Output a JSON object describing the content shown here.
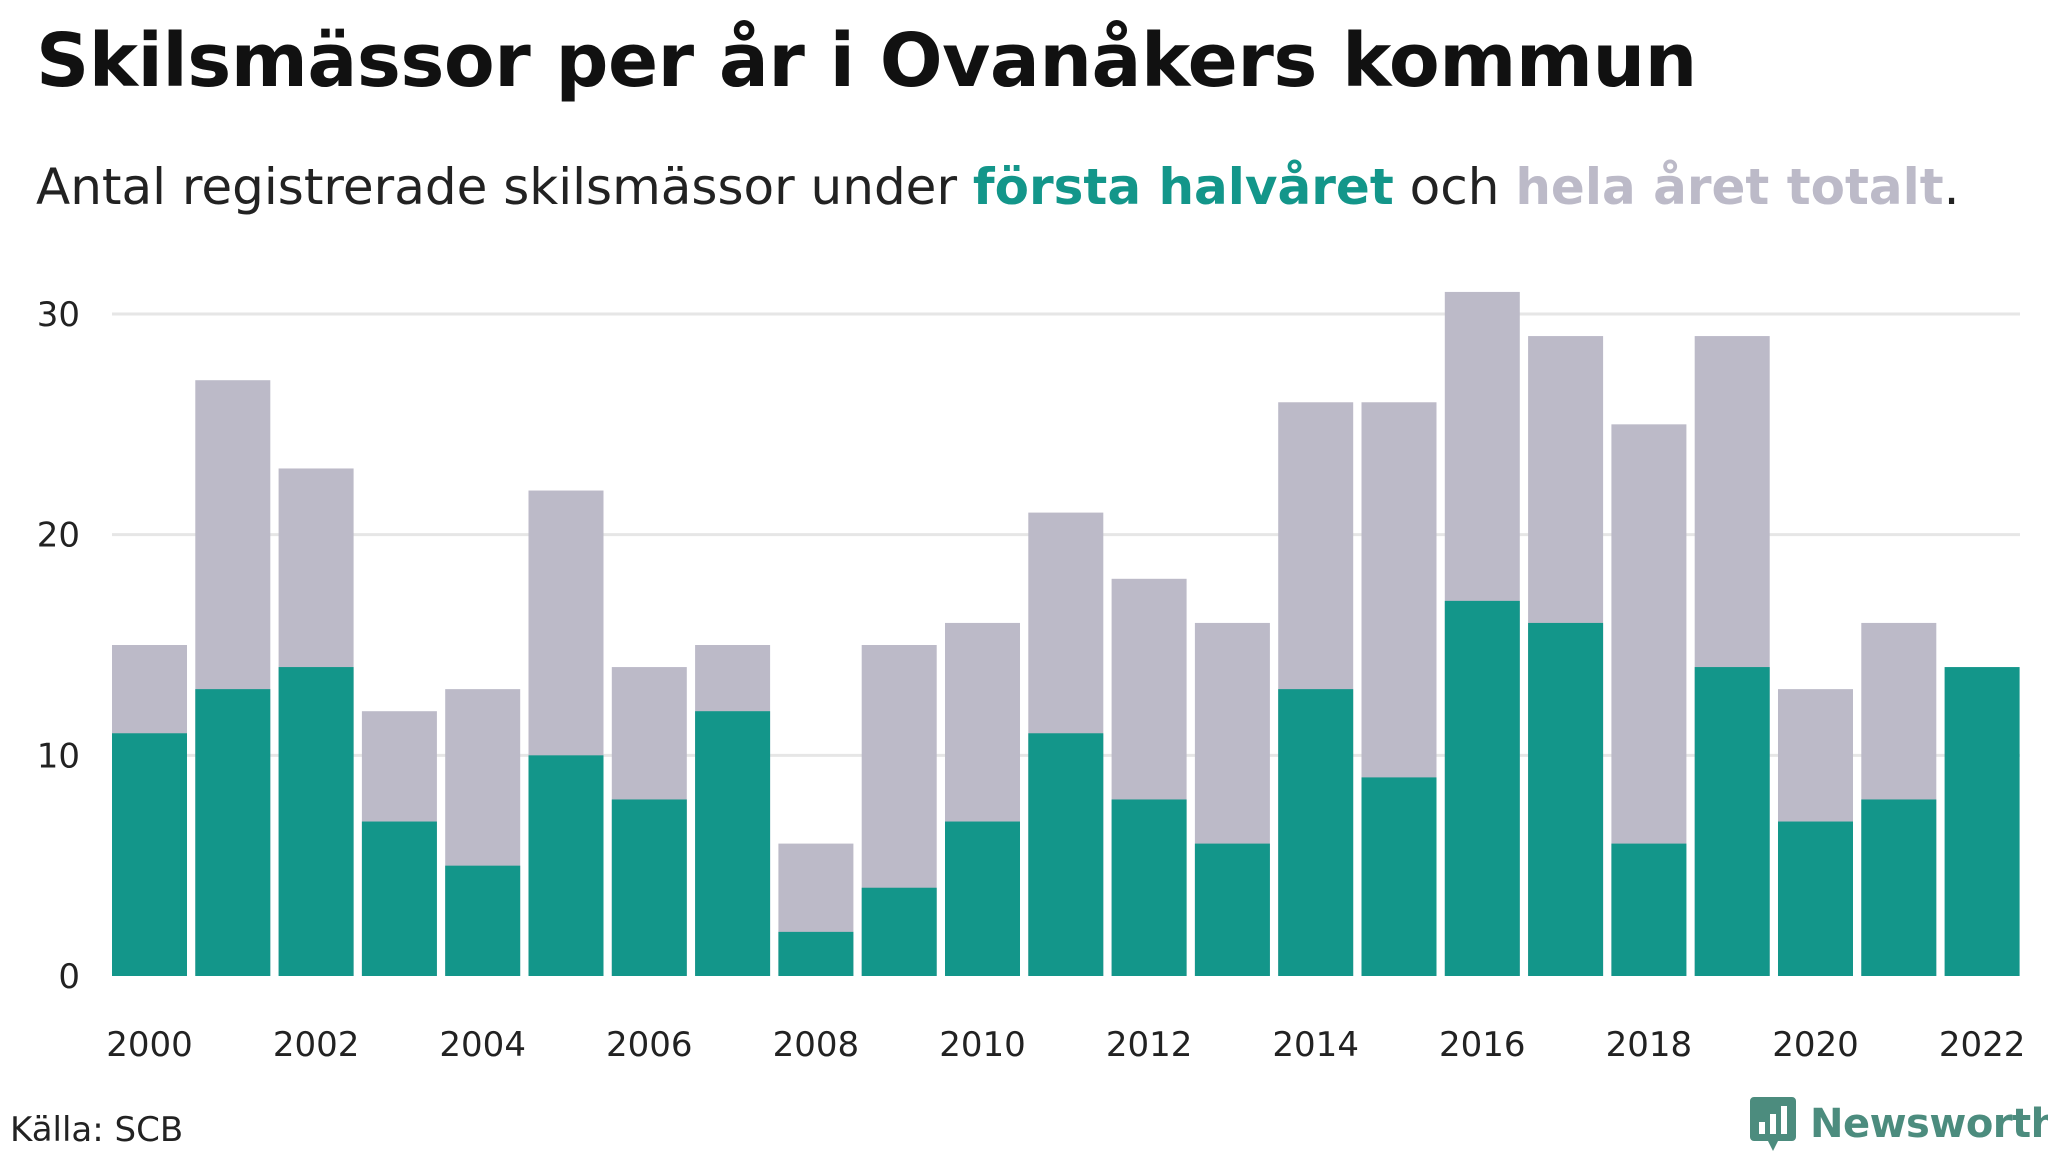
{
  "header": {
    "title": "Skilsmässor per år i Ovanåkers kommun",
    "subtitle_prefix": "Antal registrerade skilsmässor under ",
    "subtitle_first": "första halvåret",
    "subtitle_mid": " och ",
    "subtitle_total": "hela året totalt",
    "subtitle_suffix": "."
  },
  "footer": {
    "source": "Källa: SCB",
    "brand": "Newsworthy",
    "brand_icon": "bar-chart-speech-bubble-icon"
  },
  "colors": {
    "first_half": "#13968a",
    "full_year": "#bcbac8",
    "grid": "#e6e6e6",
    "text": "#111111",
    "brand": "#4c8c7e"
  },
  "chart_data": {
    "type": "bar",
    "stacked": false,
    "overlay": true,
    "title": "Skilsmässor per år i Ovanåkers kommun",
    "subtitle": "Antal registrerade skilsmässor under första halvåret och hela året totalt.",
    "xlabel": "",
    "ylabel": "",
    "ylim": [
      0,
      31
    ],
    "yticks": [
      0,
      10,
      20,
      30
    ],
    "grid": true,
    "legend": "none",
    "categories": [
      2000,
      2001,
      2002,
      2003,
      2004,
      2005,
      2006,
      2007,
      2008,
      2009,
      2010,
      2011,
      2012,
      2013,
      2014,
      2015,
      2016,
      2017,
      2018,
      2019,
      2020,
      2021,
      2022
    ],
    "xtick_labels": [
      "2000",
      "2002",
      "2004",
      "2006",
      "2008",
      "2010",
      "2012",
      "2014",
      "2016",
      "2018",
      "2020",
      "2022"
    ],
    "series": [
      {
        "name": "hela året totalt",
        "color": "#bcbac8",
        "values": [
          15,
          27,
          23,
          12,
          13,
          22,
          14,
          15,
          6,
          15,
          16,
          21,
          18,
          16,
          26,
          26,
          31,
          29,
          25,
          29,
          13,
          16,
          null
        ]
      },
      {
        "name": "första halvåret",
        "color": "#13968a",
        "values": [
          11,
          13,
          14,
          7,
          5,
          10,
          8,
          12,
          2,
          4,
          7,
          11,
          8,
          6,
          13,
          9,
          17,
          16,
          6,
          14,
          7,
          8,
          14
        ]
      }
    ]
  }
}
